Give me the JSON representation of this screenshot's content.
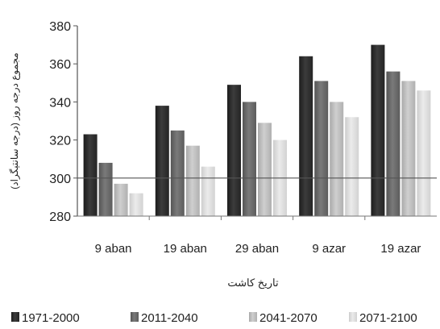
{
  "chart_data": {
    "type": "bar",
    "categories": [
      "9 aban",
      "19 aban",
      "29 aban",
      "9 azar",
      "19 azar"
    ],
    "series": [
      {
        "name": "1971-2000",
        "values": [
          323,
          338,
          349,
          364,
          370
        ]
      },
      {
        "name": "2011-2040",
        "values": [
          308,
          325,
          340,
          351,
          356
        ]
      },
      {
        "name": "2041-2070",
        "values": [
          297,
          317,
          329,
          340,
          351
        ]
      },
      {
        "name": "2071-2100",
        "values": [
          292,
          306,
          320,
          332,
          346
        ]
      }
    ],
    "title": "",
    "xlabel": "تاریخ کاشت",
    "ylabel": "مجموع درجه روز (درجه سانتیگراد)",
    "ylim": [
      280,
      380
    ],
    "yticks": [
      280,
      300,
      320,
      340,
      360,
      380
    ],
    "baseline": 300,
    "grid": false,
    "legend_position": "bottom",
    "colors": [
      "#2b2b2b",
      "#676767",
      "#b8b8b8",
      "#d9d9d9"
    ]
  }
}
